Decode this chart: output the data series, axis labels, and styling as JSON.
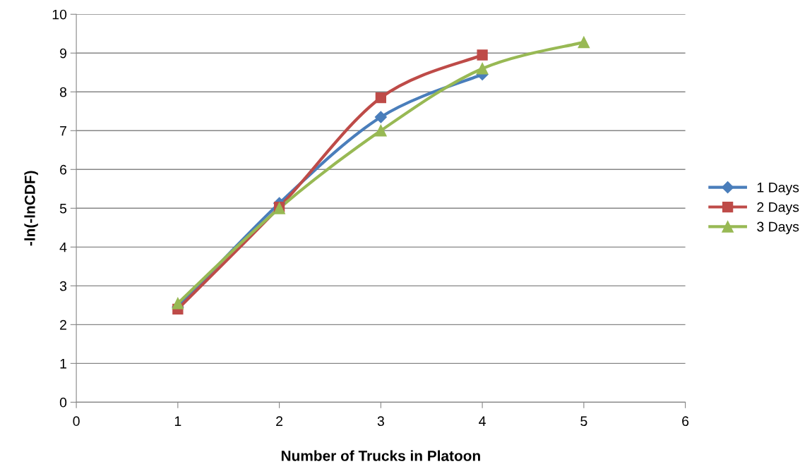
{
  "chart_data": {
    "type": "line",
    "xlabel": "Number of Trucks in Platoon",
    "ylabel": "-ln(-lnCDF)",
    "series": [
      {
        "name": "1 Days",
        "color": "#4a7ebb",
        "marker": "diamond",
        "x": [
          1,
          2,
          3,
          4
        ],
        "values": [
          2.45,
          5.13,
          7.35,
          8.45
        ]
      },
      {
        "name": "2 Days",
        "color": "#be4b48",
        "marker": "square",
        "x": [
          1,
          2,
          3,
          4
        ],
        "values": [
          2.4,
          5.03,
          7.85,
          8.95
        ]
      },
      {
        "name": "3 Days",
        "color": "#98b954",
        "marker": "triangle",
        "x": [
          1,
          2,
          3,
          4,
          5
        ],
        "values": [
          2.55,
          5.0,
          7.0,
          8.6,
          9.28
        ]
      }
    ],
    "xlim": [
      0,
      6
    ],
    "xticks": [
      0,
      1,
      2,
      3,
      4,
      5,
      6
    ],
    "ylim": [
      0,
      10
    ],
    "yticks": [
      0,
      1,
      2,
      3,
      4,
      5,
      6,
      7,
      8,
      9,
      10
    ],
    "grid": "y",
    "legend": "right"
  }
}
